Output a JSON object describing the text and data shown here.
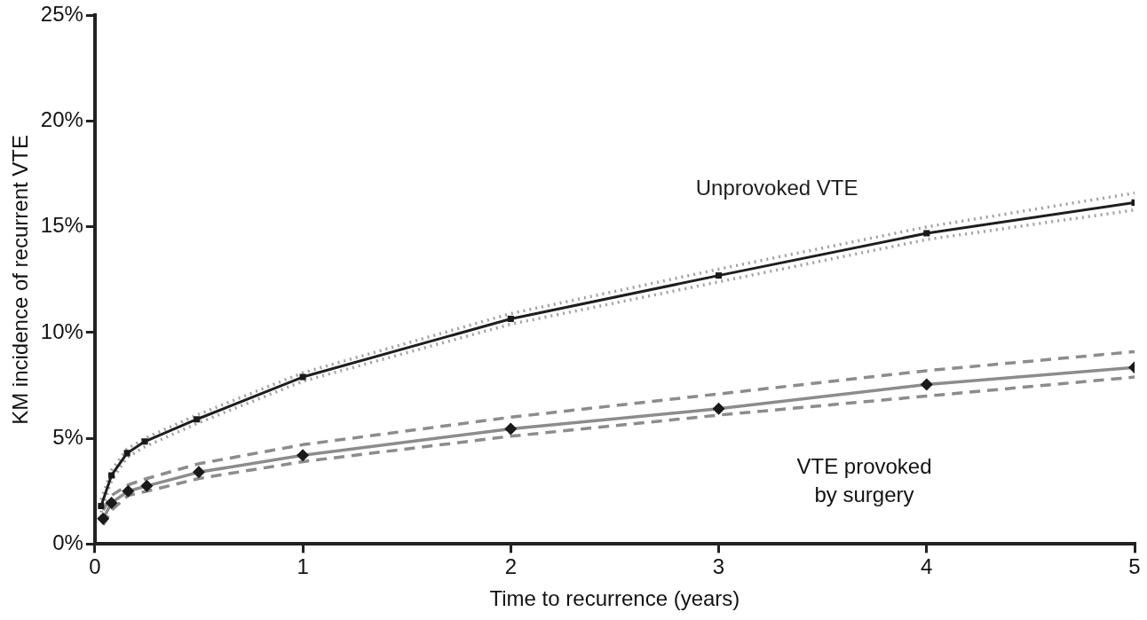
{
  "chart_data": {
    "type": "line",
    "xlabel": "Time to recurrence (years)",
    "ylabel": "KM incidence of recurrent VTE",
    "xlim": [
      0,
      5
    ],
    "xticks": [
      0,
      1,
      2,
      3,
      4,
      5
    ],
    "ylim": [
      0,
      25
    ],
    "yticks": [
      {
        "value": 0,
        "label": "0%"
      },
      {
        "value": 5,
        "label": "5%"
      },
      {
        "value": 10,
        "label": "10%"
      },
      {
        "value": 15,
        "label": "15%"
      },
      {
        "value": 20,
        "label": "20%"
      },
      {
        "value": 25,
        "label": "25%"
      }
    ],
    "grid": false,
    "legend": false,
    "series": [
      {
        "name": "Unprovoked VTE",
        "color": "#1e1e1e",
        "marker": "square",
        "line_style": "solid",
        "x": [
          0.03,
          0.08,
          0.155,
          0.24,
          0.49,
          1,
          2,
          3,
          4,
          5
        ],
        "values": [
          1.8,
          3.25,
          4.3,
          4.85,
          5.9,
          7.9,
          10.65,
          12.7,
          14.7,
          16.15
        ]
      },
      {
        "color": "#a0a0a0",
        "marker": "none",
        "line_style": "dotted",
        "x": [
          0.03,
          0.08,
          0.155,
          0.24,
          0.49,
          1,
          2,
          3,
          4,
          5
        ],
        "values": [
          1.5,
          3.0,
          4.1,
          4.6,
          5.7,
          7.7,
          10.4,
          12.4,
          14.4,
          15.8
        ]
      },
      {
        "color": "#a0a0a0",
        "marker": "none",
        "line_style": "dotted",
        "x": [
          0.03,
          0.08,
          0.155,
          0.24,
          0.49,
          1,
          2,
          3,
          4,
          5
        ],
        "values": [
          2.1,
          3.5,
          4.5,
          5.0,
          6.1,
          8.1,
          10.9,
          13.0,
          15.0,
          16.6
        ]
      },
      {
        "name": "VTE provoked by surgery",
        "color": "#8c8c8c",
        "marker": "diamond",
        "line_style": "solid",
        "x": [
          0.04,
          0.08,
          0.16,
          0.25,
          0.5,
          1,
          2,
          3,
          4,
          5
        ],
        "values": [
          1.2,
          1.95,
          2.5,
          2.75,
          3.4,
          4.2,
          5.45,
          6.4,
          7.55,
          8.35
        ]
      },
      {
        "color": "#8c8c8c",
        "marker": "none",
        "line_style": "dashed",
        "x": [
          0.04,
          0.08,
          0.16,
          0.25,
          0.5,
          1,
          2,
          3,
          4,
          5
        ],
        "values": [
          0.9,
          1.6,
          2.3,
          2.5,
          3.1,
          3.9,
          5.1,
          6.1,
          7.0,
          7.9
        ]
      },
      {
        "color": "#8c8c8c",
        "marker": "none",
        "line_style": "dashed",
        "x": [
          0.04,
          0.08,
          0.16,
          0.25,
          0.5,
          1,
          2,
          3,
          4,
          5
        ],
        "values": [
          1.6,
          2.3,
          2.8,
          3.1,
          3.8,
          4.7,
          6.0,
          7.1,
          8.2,
          9.1
        ]
      }
    ]
  }
}
